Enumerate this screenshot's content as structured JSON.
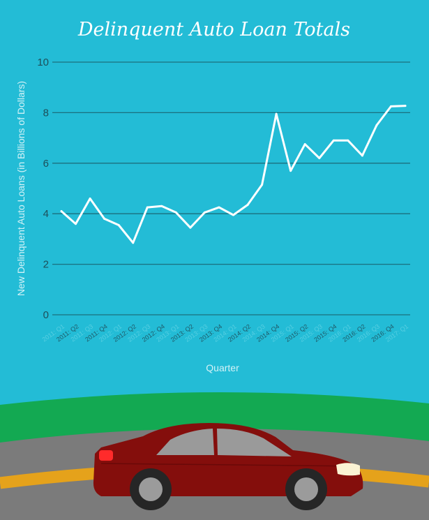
{
  "chart_data": {
    "type": "line",
    "title": "Delinquent Auto Loan Totals",
    "xlabel": "Quarter",
    "ylabel": "New Delinquent Auto Loans (in Billions of Dollars)",
    "ylim": [
      0,
      10
    ],
    "yticks": [
      "0",
      "2",
      "4",
      "6",
      "8",
      "10"
    ],
    "grid": true,
    "categories": [
      "2011: Q1",
      "2011: Q2",
      "2011: Q3",
      "2011: Q4",
      "2012: Q1",
      "2012: Q2",
      "2012: Q3",
      "2012: Q4",
      "2013: Q1",
      "2013: Q2",
      "2013: Q3",
      "2013: Q4",
      "2014: Q1",
      "2014: Q2",
      "2014: Q3",
      "2014: Q4",
      "2015: Q1",
      "2015: Q2",
      "2015: Q3",
      "2015: Q4",
      "2016: Q1",
      "2016: Q2",
      "2016: Q3",
      "2016: Q4",
      "2017: Q1"
    ],
    "values": [
      4.1,
      3.6,
      4.6,
      3.8,
      3.55,
      2.85,
      4.25,
      4.3,
      4.05,
      3.45,
      4.05,
      4.25,
      3.95,
      4.35,
      5.15,
      7.95,
      5.7,
      6.75,
      6.2,
      6.9,
      6.9,
      6.3,
      7.5,
      8.25,
      8.27
    ],
    "colors": {
      "background": "#23bcd6",
      "line": "#ffffff",
      "grid": "#1b6f7e"
    }
  }
}
